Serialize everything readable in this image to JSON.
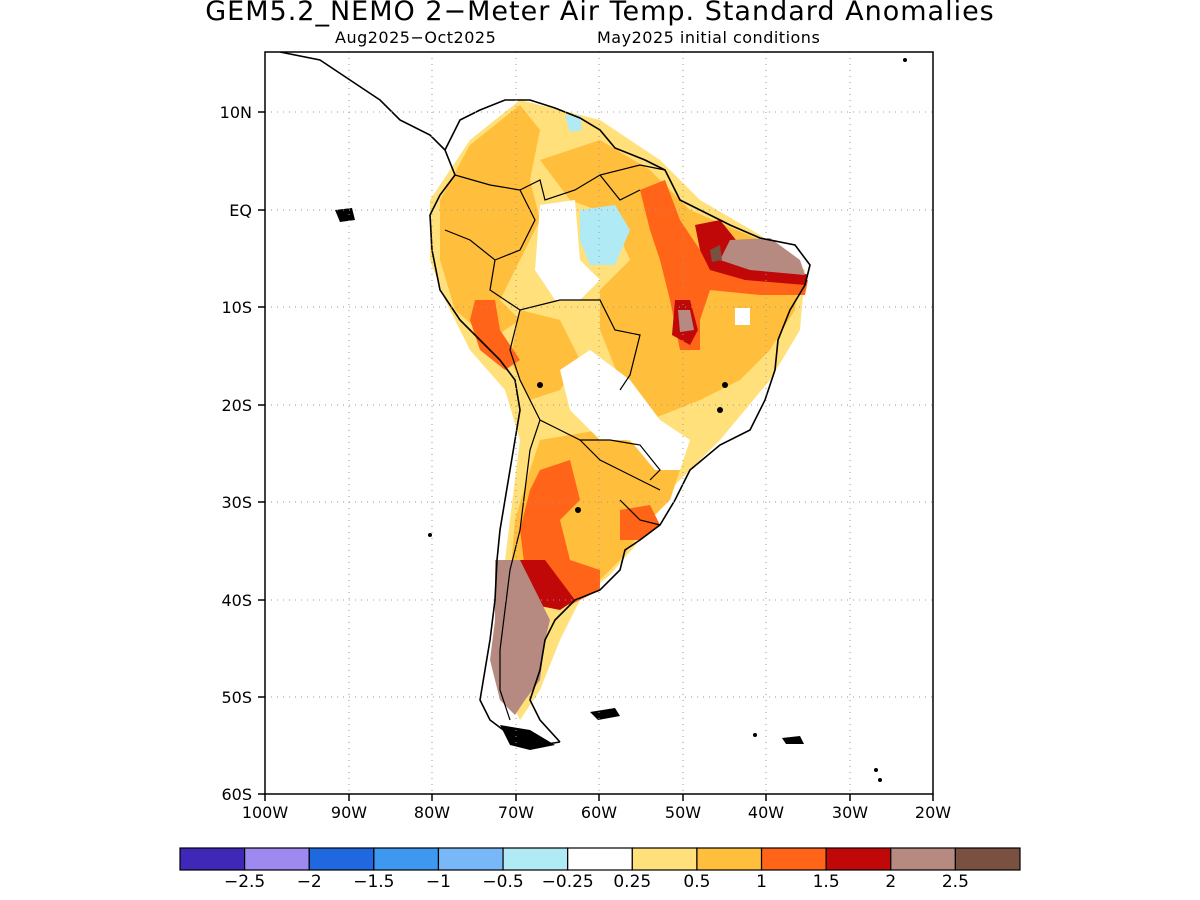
{
  "title": "GEM5.2_NEMO 2−Meter Air Temp. Standard Anomalies",
  "subtitle_left": "Aug2025−Oct2025",
  "subtitle_right": "May2025 initial conditions",
  "map": {
    "region": "South America",
    "projection": "lat-lon",
    "lon_range": [
      -100,
      -20
    ],
    "lat_range": [
      -60,
      15
    ],
    "grid": "dotted",
    "lon_labels": [
      "100W",
      "90W",
      "80W",
      "70W",
      "60W",
      "50W",
      "40W",
      "30W",
      "20W"
    ],
    "lat_labels": [
      "10N",
      "EQ",
      "10S",
      "20S",
      "30S",
      "40S",
      "50S",
      "60S"
    ]
  },
  "colorbar": {
    "colors": [
      "#3f28b8",
      "#9d89f0",
      "#2068e0",
      "#3f98f0",
      "#78b8f8",
      "#b0eaf5",
      "#ffffff",
      "#ffe07a",
      "#ffbe3c",
      "#ff6418",
      "#c00808",
      "#b68a80",
      "#7a5040"
    ],
    "labels": [
      "−2.5",
      "−2",
      "−1.5",
      "−1",
      "−0.5",
      "−0.25",
      "0.25",
      "0.5",
      "1",
      "1.5",
      "2",
      "2.5"
    ]
  }
}
